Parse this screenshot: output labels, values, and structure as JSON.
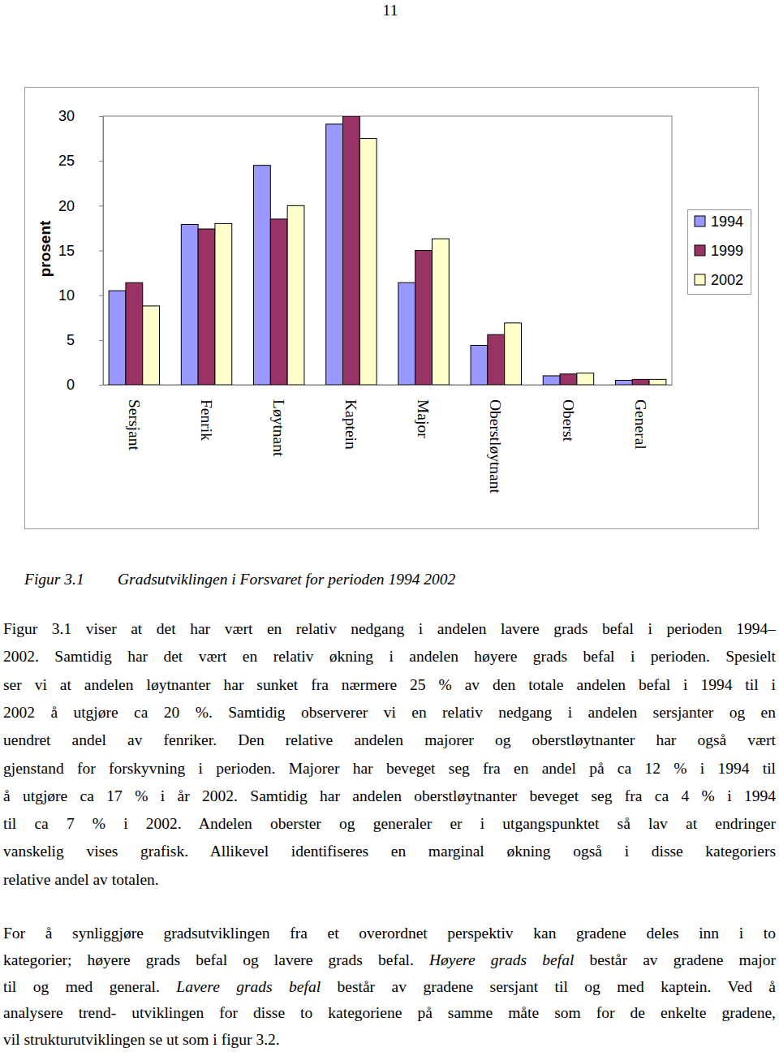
{
  "page_number": "11",
  "chart_data": {
    "type": "bar",
    "y_label": "prosent",
    "categories": [
      "Sersjant",
      "Fenrik",
      "Løytnant",
      "Kaptein",
      "Major",
      "Oberstløytnant",
      "Oberst",
      "General"
    ],
    "series": [
      {
        "name": "1994",
        "color": "#9999ff",
        "values": [
          10.5,
          17.9,
          24.5,
          29.1,
          11.4,
          4.4,
          1.0,
          0.5
        ]
      },
      {
        "name": "1999",
        "color": "#993366",
        "values": [
          11.4,
          17.4,
          18.5,
          30.0,
          15.0,
          5.6,
          1.2,
          0.6
        ]
      },
      {
        "name": "2002",
        "color": "#ffffcc",
        "values": [
          8.8,
          18.0,
          20.0,
          27.5,
          16.3,
          6.9,
          1.3,
          0.6
        ]
      }
    ],
    "ylim": [
      0,
      30
    ],
    "yticks": [
      0,
      5,
      10,
      15,
      20,
      25,
      30
    ],
    "grid": false,
    "legend": "right"
  },
  "caption": {
    "label": "Figur 3.1",
    "text": "Gradsutviklingen i Forsvaret for perioden 1994 2002"
  },
  "paragraphs": [
    {
      "lines": [
        "Figur 3.1 viser at det har vært en relativ nedgang i andelen lavere grads befal i perioden 1994–",
        "2002. Samtidig har det vært en relativ økning i andelen høyere grads befal i perioden. Spesielt",
        "ser vi at andelen løytnanter har sunket fra nærmere 25 % av den totale andelen befal i 1994 til i",
        "2002 å utgjøre ca 20 %. Samtidig observerer vi en relativ nedgang i andelen sersjanter og en",
        "uendret andel av fenriker. Den relative andelen majorer og oberstløytnanter har også vært",
        "gjenstand for forskyvning i perioden. Majorer har beveget seg fra en andel på ca 12 % i 1994 til",
        "å utgjøre ca 17 % i år 2002. Samtidig har andelen oberstløytnanter beveget seg fra ca 4 % i 1994",
        "til ca 7 % i 2002. Andelen oberster og generaler er i utgangspunktet så lav at endringer",
        "vanskelig vises grafisk. Allikevel identifiseres en marginal økning også i disse kategoriers",
        "relative andel av totalen."
      ],
      "emphasis": []
    },
    {
      "lines": [
        "For å synliggjøre gradsutviklingen fra et overordnet perspektiv kan gradene deles inn i to",
        "kategorier; høyere grads befal og lavere grads befal. Høyere grads befal består av gradene major",
        "til og med general. Lavere grads befal består av gradene sersjant til og med kaptein. Ved å",
        "analysere trend- utviklingen for disse to kategoriene på samme måte som for de enkelte gradene,",
        "vil strukturutviklingen se ut som i figur 3.2."
      ],
      "emphasis": [
        "Høyere grads befal",
        "Lavere grads befal"
      ]
    }
  ]
}
